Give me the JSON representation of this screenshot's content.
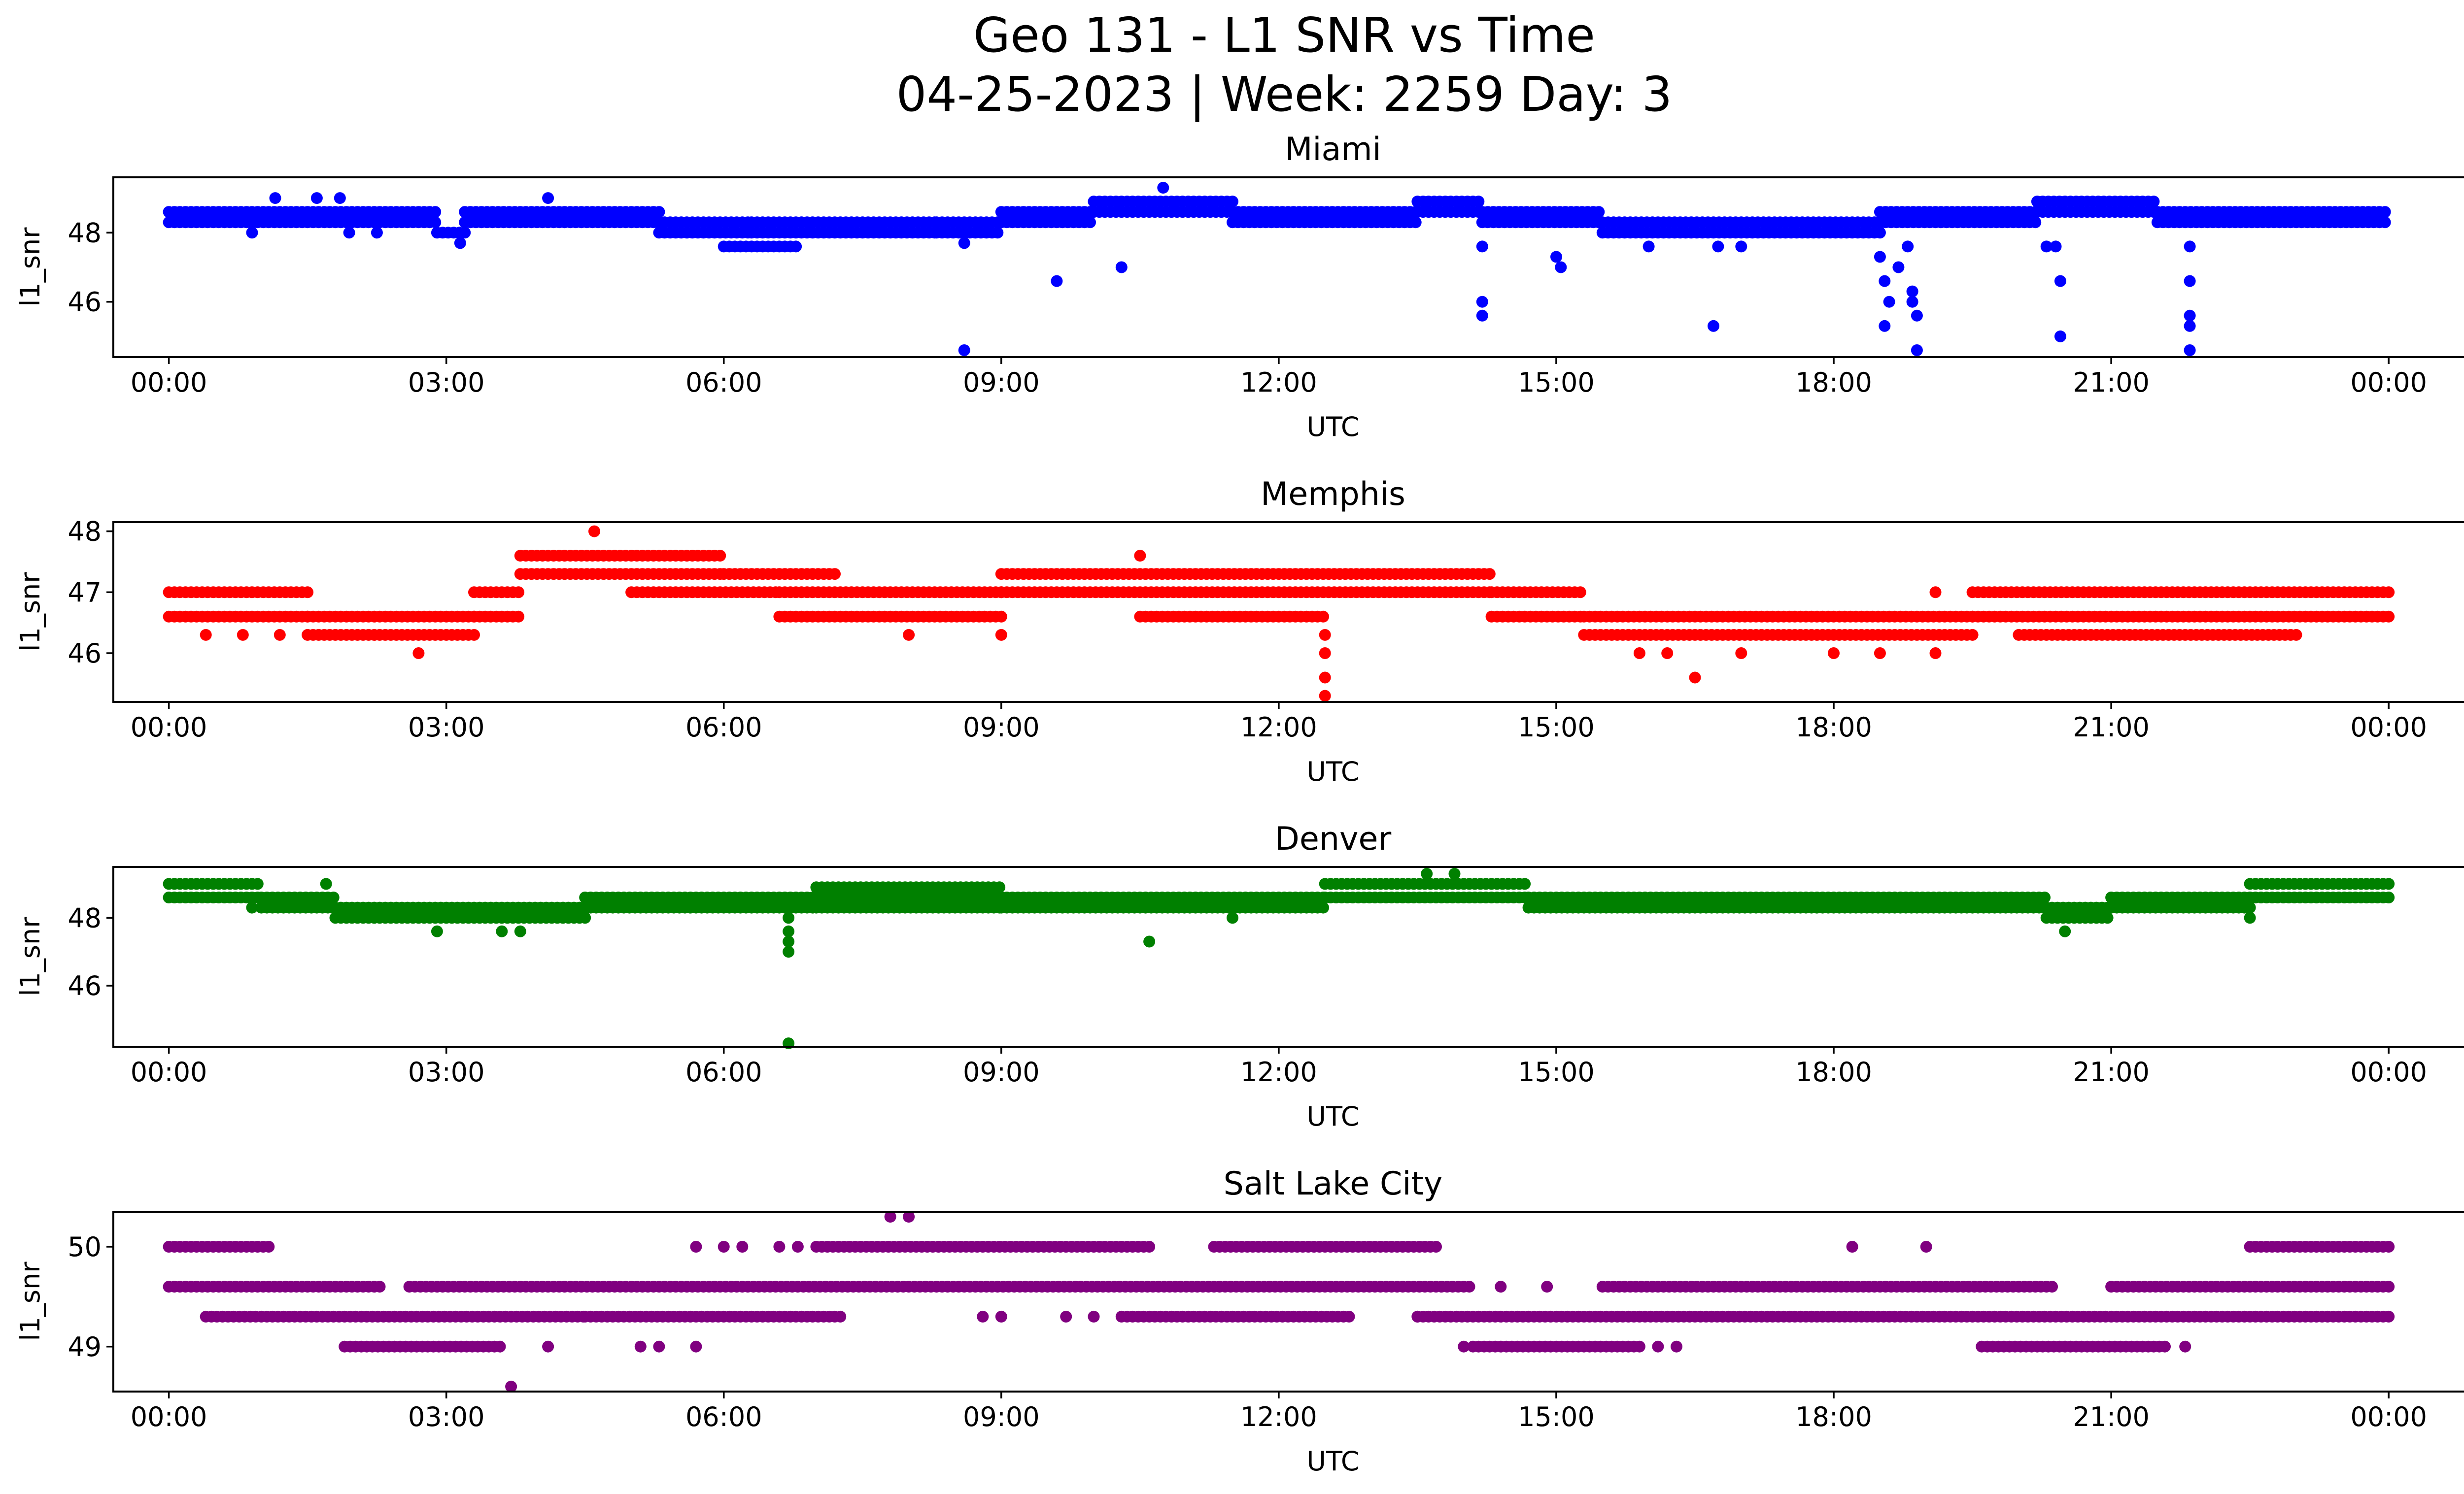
{
  "figure": {
    "title_line1": "Geo 131 - L1 SNR vs Time",
    "title_line2": "04-25-2023 | Week: 2259 Day: 3"
  },
  "chart_data": [
    {
      "type": "scatter",
      "title": "Miami",
      "xlabel": "UTC",
      "ylabel": "l1_snr",
      "color": "#0000ff",
      "x_ticks": [
        "00:00",
        "03:00",
        "06:00",
        "09:00",
        "12:00",
        "15:00",
        "18:00",
        "21:00",
        "00:00"
      ],
      "x_range_hours": [
        -0.6,
        25.8
      ],
      "y_ticks": [
        46,
        48
      ],
      "ylim": [
        44.4,
        49.6
      ],
      "grid": false,
      "bands": [
        {
          "x0": 0.0,
          "x1": 2.9,
          "y": 48.6
        },
        {
          "x0": 0.0,
          "x1": 2.9,
          "y": 48.3
        },
        {
          "x0": 2.9,
          "x1": 3.2,
          "y": 48.0
        },
        {
          "x0": 3.2,
          "x1": 5.3,
          "y": 48.6
        },
        {
          "x0": 3.2,
          "x1": 5.3,
          "y": 48.3
        },
        {
          "x0": 5.3,
          "x1": 6.3,
          "y": 48.3
        },
        {
          "x0": 5.3,
          "x1": 6.3,
          "y": 48.0
        },
        {
          "x0": 6.0,
          "x1": 6.8,
          "y": 47.6
        },
        {
          "x0": 6.3,
          "x1": 8.3,
          "y": 48.3
        },
        {
          "x0": 6.3,
          "x1": 8.3,
          "y": 48.0
        },
        {
          "x0": 8.3,
          "x1": 9.0,
          "y": 48.0
        },
        {
          "x0": 8.3,
          "x1": 9.0,
          "y": 48.3
        },
        {
          "x0": 9.0,
          "x1": 10.0,
          "y": 48.6
        },
        {
          "x0": 9.0,
          "x1": 10.0,
          "y": 48.3
        },
        {
          "x0": 10.0,
          "x1": 11.5,
          "y": 48.9
        },
        {
          "x0": 10.0,
          "x1": 11.5,
          "y": 48.6
        },
        {
          "x0": 11.5,
          "x1": 13.5,
          "y": 48.6
        },
        {
          "x0": 11.5,
          "x1": 13.5,
          "y": 48.3
        },
        {
          "x0": 13.5,
          "x1": 14.2,
          "y": 48.9
        },
        {
          "x0": 13.5,
          "x1": 14.2,
          "y": 48.6
        },
        {
          "x0": 14.2,
          "x1": 15.5,
          "y": 48.6
        },
        {
          "x0": 14.2,
          "x1": 15.5,
          "y": 48.3
        },
        {
          "x0": 15.5,
          "x1": 18.5,
          "y": 48.3
        },
        {
          "x0": 15.5,
          "x1": 18.5,
          "y": 48.0
        },
        {
          "x0": 18.5,
          "x1": 20.2,
          "y": 48.6
        },
        {
          "x0": 18.5,
          "x1": 20.2,
          "y": 48.3
        },
        {
          "x0": 20.2,
          "x1": 21.5,
          "y": 48.9
        },
        {
          "x0": 20.2,
          "x1": 21.5,
          "y": 48.6
        },
        {
          "x0": 21.5,
          "x1": 24.0,
          "y": 48.6
        },
        {
          "x0": 21.5,
          "x1": 24.0,
          "y": 48.3
        }
      ],
      "points": [
        [
          1.15,
          49.0
        ],
        [
          1.6,
          49.0
        ],
        [
          1.85,
          49.0
        ],
        [
          4.1,
          49.0
        ],
        [
          10.75,
          49.3
        ],
        [
          0.9,
          48.0
        ],
        [
          1.95,
          48.0
        ],
        [
          2.25,
          48.0
        ],
        [
          3.15,
          47.7
        ],
        [
          8.6,
          47.7
        ],
        [
          8.6,
          44.6
        ],
        [
          9.6,
          46.6
        ],
        [
          10.3,
          47.0
        ],
        [
          14.2,
          46.0
        ],
        [
          14.2,
          45.6
        ],
        [
          14.2,
          47.6
        ],
        [
          15.0,
          47.3
        ],
        [
          15.05,
          47.0
        ],
        [
          16.7,
          45.3
        ],
        [
          16.75,
          47.6
        ],
        [
          16.0,
          47.6
        ],
        [
          17.0,
          47.6
        ],
        [
          18.5,
          47.3
        ],
        [
          18.55,
          46.6
        ],
        [
          18.6,
          46.0
        ],
        [
          18.55,
          45.3
        ],
        [
          18.7,
          47.0
        ],
        [
          18.85,
          46.3
        ],
        [
          18.85,
          46.0
        ],
        [
          18.9,
          45.6
        ],
        [
          18.9,
          44.6
        ],
        [
          18.8,
          47.6
        ],
        [
          20.4,
          47.6
        ],
        [
          20.45,
          46.6
        ],
        [
          20.45,
          45.0
        ],
        [
          20.3,
          47.6
        ],
        [
          21.85,
          47.6
        ],
        [
          21.85,
          46.6
        ],
        [
          21.85,
          45.6
        ],
        [
          21.85,
          45.3
        ],
        [
          21.85,
          44.6
        ]
      ]
    },
    {
      "type": "scatter",
      "title": "Memphis",
      "xlabel": "UTC",
      "ylabel": "l1_snr",
      "color": "#ff0000",
      "x_ticks": [
        "00:00",
        "03:00",
        "06:00",
        "09:00",
        "12:00",
        "15:00",
        "18:00",
        "21:00",
        "00:00"
      ],
      "x_range_hours": [
        -0.6,
        25.8
      ],
      "y_ticks": [
        46,
        47,
        48
      ],
      "ylim": [
        45.2,
        48.15
      ],
      "grid": false,
      "bands": [
        {
          "x0": 0.0,
          "x1": 1.5,
          "y": 47.0
        },
        {
          "x0": 0.0,
          "x1": 1.5,
          "y": 46.6
        },
        {
          "x0": 1.5,
          "x1": 3.3,
          "y": 46.6
        },
        {
          "x0": 1.5,
          "x1": 3.3,
          "y": 46.3
        },
        {
          "x0": 3.3,
          "x1": 3.8,
          "y": 47.0
        },
        {
          "x0": 3.3,
          "x1": 3.8,
          "y": 46.6
        },
        {
          "x0": 3.8,
          "x1": 6.0,
          "y": 47.6
        },
        {
          "x0": 3.8,
          "x1": 6.0,
          "y": 47.3
        },
        {
          "x0": 5.0,
          "x1": 6.6,
          "y": 47.0
        },
        {
          "x0": 6.0,
          "x1": 7.2,
          "y": 47.3
        },
        {
          "x0": 6.6,
          "x1": 9.0,
          "y": 46.6
        },
        {
          "x0": 6.6,
          "x1": 9.0,
          "y": 47.0
        },
        {
          "x0": 9.0,
          "x1": 14.3,
          "y": 47.3
        },
        {
          "x0": 9.0,
          "x1": 14.3,
          "y": 47.0
        },
        {
          "x0": 10.5,
          "x1": 12.5,
          "y": 46.6
        },
        {
          "x0": 14.3,
          "x1": 15.3,
          "y": 47.0
        },
        {
          "x0": 14.3,
          "x1": 15.3,
          "y": 46.6
        },
        {
          "x0": 15.3,
          "x1": 19.5,
          "y": 46.6
        },
        {
          "x0": 15.3,
          "x1": 19.5,
          "y": 46.3
        },
        {
          "x0": 19.5,
          "x1": 24.0,
          "y": 47.0
        },
        {
          "x0": 19.5,
          "x1": 24.0,
          "y": 46.6
        },
        {
          "x0": 20.0,
          "x1": 23.0,
          "y": 46.3
        }
      ],
      "points": [
        [
          0.4,
          46.3
        ],
        [
          0.8,
          46.3
        ],
        [
          1.2,
          46.3
        ],
        [
          2.7,
          46.0
        ],
        [
          4.6,
          48.0
        ],
        [
          10.5,
          47.6
        ],
        [
          8.0,
          46.3
        ],
        [
          9.0,
          46.3
        ],
        [
          12.5,
          46.3
        ],
        [
          12.5,
          46.0
        ],
        [
          12.5,
          45.6
        ],
        [
          12.5,
          45.3
        ],
        [
          15.9,
          46.0
        ],
        [
          16.2,
          46.0
        ],
        [
          16.5,
          45.6
        ],
        [
          17.0,
          46.0
        ],
        [
          18.0,
          46.0
        ],
        [
          18.5,
          46.0
        ],
        [
          19.1,
          46.0
        ],
        [
          19.1,
          47.0
        ]
      ]
    },
    {
      "type": "scatter",
      "title": "Denver",
      "xlabel": "UTC",
      "ylabel": "l1_snr",
      "color": "#008000",
      "x_ticks": [
        "00:00",
        "03:00",
        "06:00",
        "09:00",
        "12:00",
        "15:00",
        "18:00",
        "21:00",
        "00:00"
      ],
      "x_range_hours": [
        -0.6,
        25.8
      ],
      "y_ticks": [
        46,
        48
      ],
      "ylim": [
        44.2,
        49.5
      ],
      "grid": false,
      "bands": [
        {
          "x0": 0.0,
          "x1": 1.0,
          "y": 49.0
        },
        {
          "x0": 0.0,
          "x1": 1.0,
          "y": 48.6
        },
        {
          "x0": 1.0,
          "x1": 1.8,
          "y": 48.6
        },
        {
          "x0": 1.0,
          "x1": 1.8,
          "y": 48.3
        },
        {
          "x0": 1.8,
          "x1": 4.5,
          "y": 48.3
        },
        {
          "x0": 1.8,
          "x1": 4.5,
          "y": 48.0
        },
        {
          "x0": 4.5,
          "x1": 7.0,
          "y": 48.6
        },
        {
          "x0": 4.5,
          "x1": 7.0,
          "y": 48.3
        },
        {
          "x0": 7.0,
          "x1": 9.0,
          "y": 48.9
        },
        {
          "x0": 7.0,
          "x1": 9.0,
          "y": 48.6
        },
        {
          "x0": 7.0,
          "x1": 9.0,
          "y": 48.3
        },
        {
          "x0": 9.0,
          "x1": 12.5,
          "y": 48.6
        },
        {
          "x0": 9.0,
          "x1": 12.5,
          "y": 48.3
        },
        {
          "x0": 12.5,
          "x1": 14.7,
          "y": 49.0
        },
        {
          "x0": 12.5,
          "x1": 14.7,
          "y": 48.6
        },
        {
          "x0": 14.7,
          "x1": 20.3,
          "y": 48.6
        },
        {
          "x0": 14.7,
          "x1": 20.3,
          "y": 48.3
        },
        {
          "x0": 20.3,
          "x1": 21.0,
          "y": 48.3
        },
        {
          "x0": 20.3,
          "x1": 21.0,
          "y": 48.0
        },
        {
          "x0": 21.0,
          "x1": 22.5,
          "y": 48.6
        },
        {
          "x0": 21.0,
          "x1": 22.5,
          "y": 48.3
        },
        {
          "x0": 22.5,
          "x1": 24.0,
          "y": 49.0
        },
        {
          "x0": 22.5,
          "x1": 24.0,
          "y": 48.6
        }
      ],
      "points": [
        [
          1.7,
          49.0
        ],
        [
          2.9,
          47.6
        ],
        [
          3.6,
          47.6
        ],
        [
          3.8,
          47.6
        ],
        [
          6.7,
          48.0
        ],
        [
          6.7,
          47.6
        ],
        [
          6.7,
          47.3
        ],
        [
          6.7,
          47.0
        ],
        [
          6.7,
          44.3
        ],
        [
          10.6,
          47.3
        ],
        [
          11.5,
          48.0
        ],
        [
          13.6,
          49.3
        ],
        [
          13.9,
          49.3
        ],
        [
          20.5,
          47.6
        ],
        [
          22.5,
          48.0
        ],
        [
          0.9,
          48.3
        ]
      ]
    },
    {
      "type": "scatter",
      "title": "Salt Lake City",
      "xlabel": "UTC",
      "ylabel": "l1_snr",
      "color": "#800080",
      "x_ticks": [
        "00:00",
        "03:00",
        "06:00",
        "09:00",
        "12:00",
        "15:00",
        "18:00",
        "21:00",
        "00:00"
      ],
      "x_range_hours": [
        -0.6,
        25.8
      ],
      "y_ticks": [
        49,
        50
      ],
      "ylim": [
        48.55,
        50.35
      ],
      "grid": false,
      "bands": [
        {
          "x0": 0.0,
          "x1": 1.1,
          "y": 50.0
        },
        {
          "x0": 0.0,
          "x1": 2.3,
          "y": 49.6
        },
        {
          "x0": 0.4,
          "x1": 4.5,
          "y": 49.3
        },
        {
          "x0": 1.9,
          "x1": 3.6,
          "y": 49.0
        },
        {
          "x0": 2.6,
          "x1": 14.1,
          "y": 49.6
        },
        {
          "x0": 4.5,
          "x1": 7.3,
          "y": 49.3
        },
        {
          "x0": 7.0,
          "x1": 10.6,
          "y": 50.0
        },
        {
          "x0": 10.3,
          "x1": 12.8,
          "y": 49.3
        },
        {
          "x0": 11.3,
          "x1": 13.7,
          "y": 50.0
        },
        {
          "x0": 13.5,
          "x1": 24.0,
          "y": 49.3
        },
        {
          "x0": 14.1,
          "x1": 15.9,
          "y": 49.0
        },
        {
          "x0": 15.5,
          "x1": 20.4,
          "y": 49.6
        },
        {
          "x0": 19.6,
          "x1": 21.6,
          "y": 49.0
        },
        {
          "x0": 21.0,
          "x1": 24.0,
          "y": 49.6
        },
        {
          "x0": 22.5,
          "x1": 24.0,
          "y": 50.0
        }
      ],
      "points": [
        [
          3.7,
          48.6
        ],
        [
          7.8,
          50.3
        ],
        [
          8.0,
          50.3
        ],
        [
          14.4,
          49.6
        ],
        [
          14.9,
          49.6
        ],
        [
          18.2,
          50.0
        ],
        [
          19.0,
          50.0
        ],
        [
          4.1,
          49.0
        ],
        [
          5.1,
          49.0
        ],
        [
          5.3,
          49.0
        ],
        [
          5.7,
          49.0
        ],
        [
          8.8,
          49.3
        ],
        [
          9.0,
          49.3
        ],
        [
          9.7,
          49.3
        ],
        [
          10.0,
          49.3
        ],
        [
          13.5,
          49.3
        ],
        [
          14.0,
          49.0
        ],
        [
          16.1,
          49.0
        ],
        [
          16.3,
          49.0
        ],
        [
          21.8,
          49.0
        ],
        [
          5.7,
          50.0
        ],
        [
          6.0,
          50.0
        ],
        [
          6.2,
          50.0
        ],
        [
          6.6,
          50.0
        ],
        [
          6.8,
          50.0
        ]
      ]
    }
  ]
}
